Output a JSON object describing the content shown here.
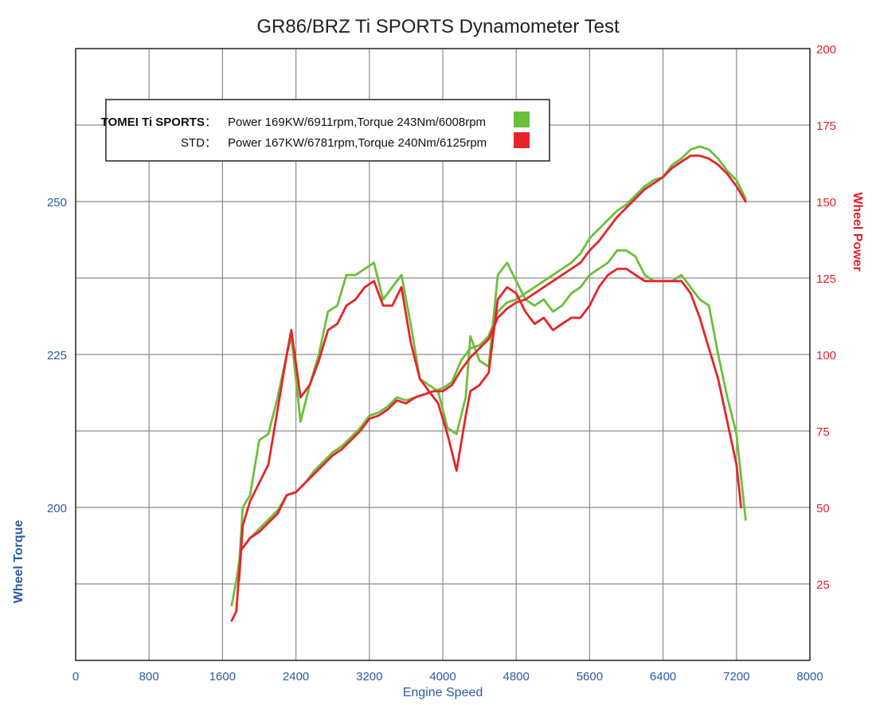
{
  "chart_data": {
    "type": "line",
    "title": "GR86/BRZ Ti SPORTS Dynamometer Test",
    "xlabel": "Engine Speed",
    "ylabel_left": "Wheel Torque",
    "ylabel_right": "Wheel Power",
    "xlim": [
      0,
      8000
    ],
    "x_ticks": [
      "0",
      "800",
      "1600",
      "2400",
      "3200",
      "4000",
      "4800",
      "5600",
      "6400",
      "7200",
      "8000"
    ],
    "y_right_lim": [
      0,
      200
    ],
    "y_right_ticks": [
      "25",
      "50",
      "75",
      "100",
      "125",
      "150",
      "175",
      "200"
    ],
    "y_left_lim": [
      175,
      275
    ],
    "y_left_ticks": [
      "200",
      "225",
      "250"
    ],
    "grid": true,
    "legend_position": "top-left",
    "legend": [
      {
        "name": "TOMEI Ti SPORTS",
        "separator": "：",
        "text": "Power 169KW/6911rpm,Torque 243Nm/6008rpm",
        "color": "#6cbf3a"
      },
      {
        "name": "STD",
        "separator": "：",
        "text": "Power 167KW/6781rpm,Torque 240Nm/6125rpm",
        "color": "#e8232b"
      }
    ],
    "series": [
      {
        "name": "TOMEI Ti SPORTS",
        "measure": "Wheel Power",
        "axis": "right",
        "color": "#6cbf3a",
        "x": [
          1700,
          1750,
          1800,
          1900,
          2000,
          2100,
          2200,
          2300,
          2400,
          2500,
          2600,
          2700,
          2800,
          2900,
          3000,
          3100,
          3200,
          3300,
          3400,
          3500,
          3600,
          3700,
          3800,
          3900,
          4000,
          4100,
          4200,
          4300,
          4400,
          4500,
          4600,
          4700,
          4800,
          4900,
          5000,
          5100,
          5200,
          5300,
          5400,
          5500,
          5600,
          5700,
          5800,
          5900,
          6000,
          6100,
          6200,
          6300,
          6400,
          6500,
          6600,
          6700,
          6800,
          6900,
          7000,
          7100,
          7200,
          7300
        ],
        "values": [
          18,
          26,
          36,
          40,
          43,
          46,
          49,
          54,
          55,
          58,
          62,
          65,
          68,
          70,
          73,
          76,
          80,
          81,
          83,
          86,
          85,
          86,
          87,
          88,
          89,
          91,
          98,
          102,
          103,
          106,
          114,
          117,
          118,
          120,
          122,
          124,
          126,
          128,
          130,
          133,
          138,
          141,
          144,
          147,
          149,
          152,
          155,
          157,
          158,
          162,
          164,
          167,
          168,
          167,
          164,
          160,
          157,
          151
        ]
      },
      {
        "name": "STD",
        "measure": "Wheel Power",
        "axis": "right",
        "color": "#e8232b",
        "x": [
          1700,
          1750,
          1800,
          1900,
          2000,
          2100,
          2200,
          2300,
          2400,
          2500,
          2600,
          2700,
          2800,
          2900,
          3000,
          3100,
          3200,
          3300,
          3400,
          3500,
          3600,
          3700,
          3800,
          3900,
          4000,
          4100,
          4200,
          4300,
          4400,
          4500,
          4600,
          4700,
          4800,
          4900,
          5000,
          5100,
          5200,
          5300,
          5400,
          5500,
          5600,
          5700,
          5800,
          5900,
          6000,
          6100,
          6200,
          6300,
          6400,
          6500,
          6600,
          6700,
          6800,
          6900,
          7000,
          7100,
          7200,
          7300
        ],
        "values": [
          13,
          16,
          36,
          40,
          42,
          45,
          48,
          54,
          55,
          58,
          61,
          64,
          67,
          69,
          72,
          75,
          79,
          80,
          82,
          85,
          84,
          86,
          87,
          88,
          88,
          90,
          95,
          99,
          102,
          105,
          112,
          115,
          117,
          118,
          120,
          122,
          124,
          126,
          128,
          130,
          134,
          137,
          141,
          145,
          148,
          151,
          154,
          156,
          158,
          161,
          163,
          165,
          165,
          164,
          162,
          159,
          155,
          150
        ]
      },
      {
        "name": "TOMEI Ti SPORTS",
        "measure": "Wheel Torque",
        "axis": "left",
        "color": "#6cbf3a",
        "x": [
          1780,
          1820,
          1900,
          2000,
          2100,
          2200,
          2300,
          2350,
          2450,
          2550,
          2650,
          2750,
          2850,
          2950,
          3050,
          3150,
          3250,
          3350,
          3450,
          3550,
          3650,
          3750,
          3850,
          3950,
          4050,
          4150,
          4250,
          4300,
          4400,
          4500,
          4600,
          4700,
          4800,
          4900,
          5000,
          5100,
          5200,
          5300,
          5400,
          5500,
          5600,
          5700,
          5800,
          5900,
          6000,
          6100,
          6200,
          6300,
          6400,
          6500,
          6600,
          6700,
          6800,
          6900,
          7000,
          7100,
          7200,
          7300
        ],
        "values": [
          190,
          200,
          202,
          211,
          212,
          218,
          225,
          228,
          214,
          220,
          225,
          232,
          233,
          238,
          238,
          239,
          240,
          234,
          236,
          238,
          230,
          221,
          220,
          219,
          213,
          212,
          218,
          228,
          224,
          223,
          238,
          240,
          237,
          234,
          233,
          234,
          232,
          233,
          235,
          236,
          238,
          239,
          240,
          242,
          242,
          241,
          238,
          237,
          237,
          237,
          238,
          236,
          234,
          233,
          225,
          218,
          212,
          198
        ]
      },
      {
        "name": "STD",
        "measure": "Wheel Torque",
        "axis": "left",
        "color": "#e8232b",
        "x": [
          1780,
          1820,
          1900,
          2000,
          2100,
          2200,
          2300,
          2350,
          2450,
          2550,
          2650,
          2750,
          2850,
          2950,
          3050,
          3150,
          3250,
          3350,
          3450,
          3550,
          3650,
          3750,
          3850,
          3950,
          4050,
          4150,
          4250,
          4300,
          4400,
          4500,
          4600,
          4700,
          4800,
          4900,
          5000,
          5100,
          5200,
          5300,
          5400,
          5500,
          5600,
          5700,
          5800,
          5900,
          6000,
          6100,
          6200,
          6300,
          6400,
          6500,
          6600,
          6700,
          6800,
          6900,
          7000,
          7100,
          7200,
          7250
        ],
        "values": [
          188,
          197,
          201,
          204,
          207,
          216,
          225,
          229,
          218,
          220,
          224,
          229,
          230,
          233,
          234,
          236,
          237,
          233,
          233,
          236,
          227,
          221,
          219,
          217,
          212,
          206,
          215,
          219,
          220,
          222,
          234,
          236,
          235,
          232,
          230,
          231,
          229,
          230,
          231,
          231,
          233,
          236,
          238,
          239,
          239,
          238,
          237,
          237,
          237,
          237,
          237,
          235,
          231,
          226,
          221,
          214,
          207,
          200
        ]
      }
    ]
  }
}
